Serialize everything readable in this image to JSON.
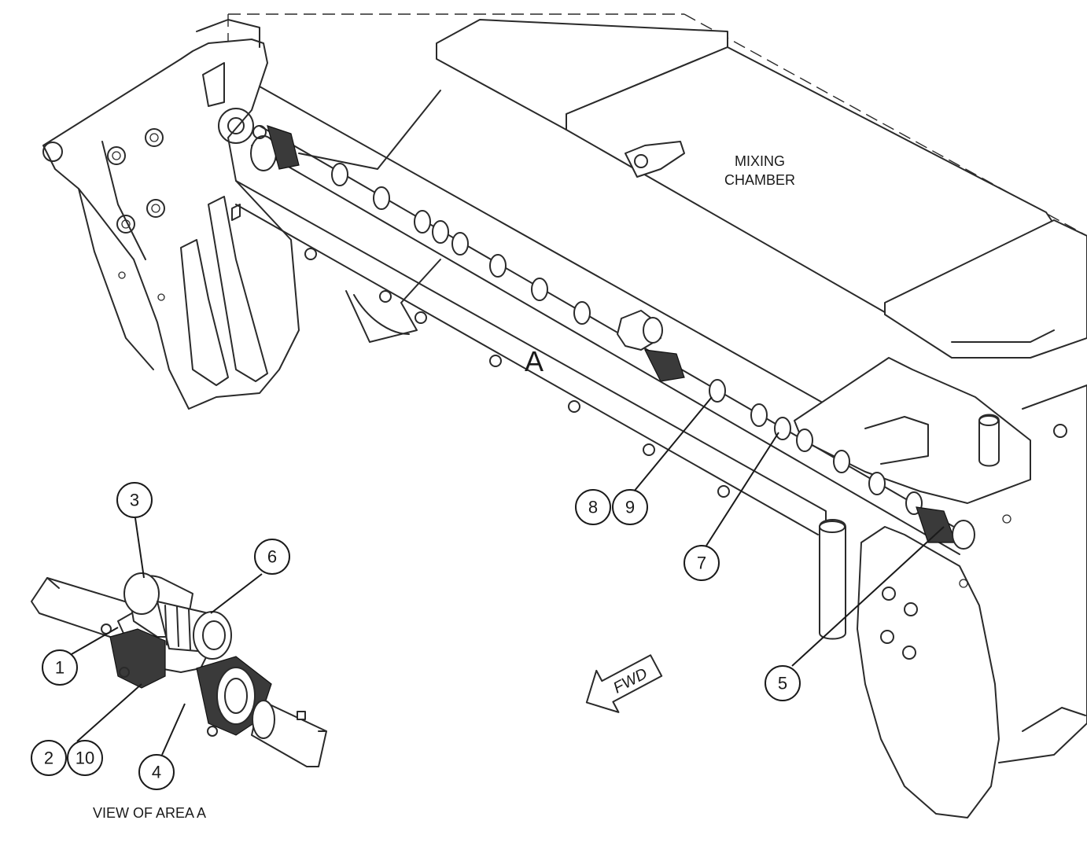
{
  "diagram": {
    "labels": {
      "mixing_chamber_line1": "MIXING",
      "mixing_chamber_line2": "CHAMBER",
      "area_letter": "A",
      "fwd_arrow": "FWD",
      "view_caption": "VIEW OF AREA  A"
    },
    "callouts": [
      "1",
      "2",
      "3",
      "4",
      "5",
      "6",
      "7",
      "8",
      "9",
      "10"
    ]
  }
}
